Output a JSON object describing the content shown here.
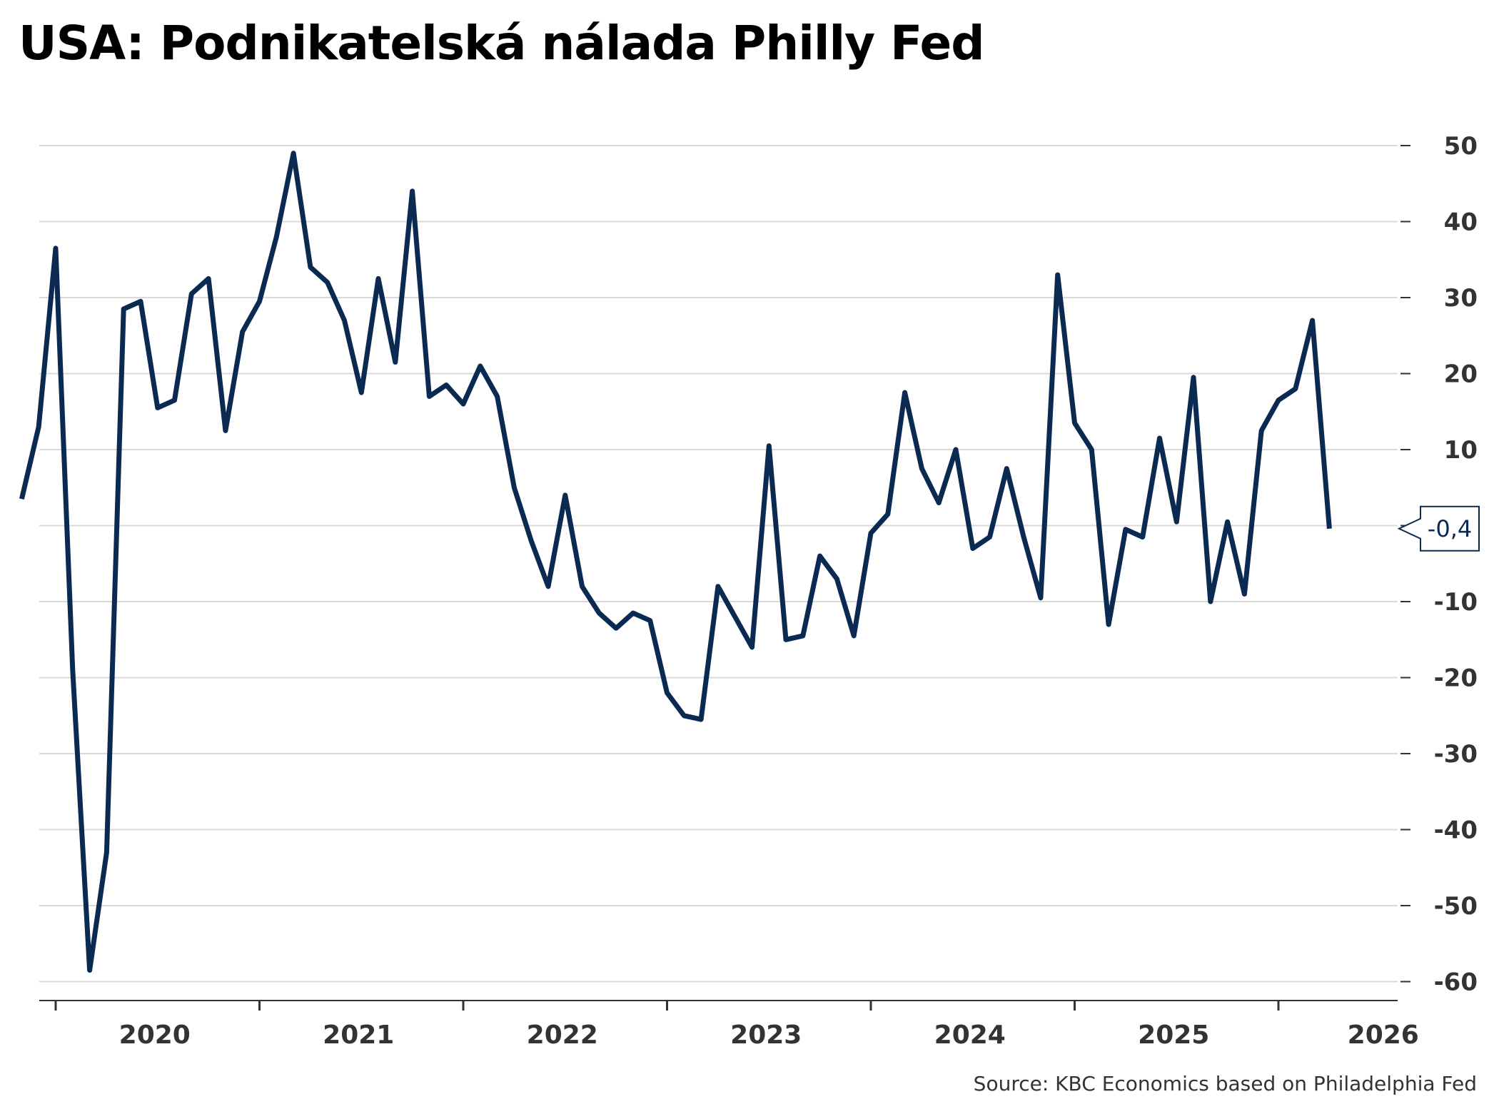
{
  "title": "USA: Podnikatelská nálada Philly Fed",
  "source": "Source: KBC Economics based on Philadelphia Fed",
  "colors": {
    "line": "#0b2a52",
    "grid": "#d9d9d9",
    "axis": "#333333"
  },
  "chart_data": {
    "type": "line",
    "title": "USA: Podnikatelská nálada Philly Fed",
    "xlabel": "",
    "ylabel": "",
    "ylim": [
      -63,
      53
    ],
    "y_ticks": [
      "50",
      "40",
      "30",
      "20",
      "10",
      "",
      "-10",
      "-20",
      "-30",
      "-40",
      "-50",
      "-60"
    ],
    "y_tick_values": [
      50,
      40,
      30,
      20,
      10,
      0,
      -10,
      -20,
      -30,
      -40,
      -50,
      -60
    ],
    "x_ticks": [
      "2020",
      "2021",
      "2022",
      "2023",
      "2024",
      "2025",
      "2026"
    ],
    "grid": true,
    "legend": "none",
    "last_value_label": "-0,4",
    "series": [
      {
        "start": "2019-11",
        "frequency": "monthly",
        "values": [
          3.5,
          13,
          36.5,
          -19,
          -58.5,
          -43,
          28.5,
          29.5,
          15.5,
          16.5,
          30.5,
          32.5,
          12.5,
          25.5,
          29.5,
          38,
          49,
          34,
          32,
          27,
          17.5,
          32.5,
          21.5,
          44,
          17,
          18.5,
          16,
          21,
          17,
          5,
          -2,
          -8,
          4,
          -8,
          -11.5,
          -13.5,
          -11.5,
          -12.5,
          -22,
          -25,
          -25.5,
          -8,
          -12,
          -16,
          10.5,
          -15,
          -14.5,
          -4,
          -7,
          -14.5,
          -1,
          1.5,
          17.5,
          7.5,
          3,
          10,
          -3,
          -1.5,
          7.5,
          -1.5,
          -9.5,
          33,
          13.5,
          10,
          -13,
          -0.5,
          -1.5,
          11.5,
          0.5,
          19.5,
          -10,
          0.5,
          -9,
          12.5,
          16.5,
          18,
          27,
          -0.4
        ]
      }
    ]
  }
}
